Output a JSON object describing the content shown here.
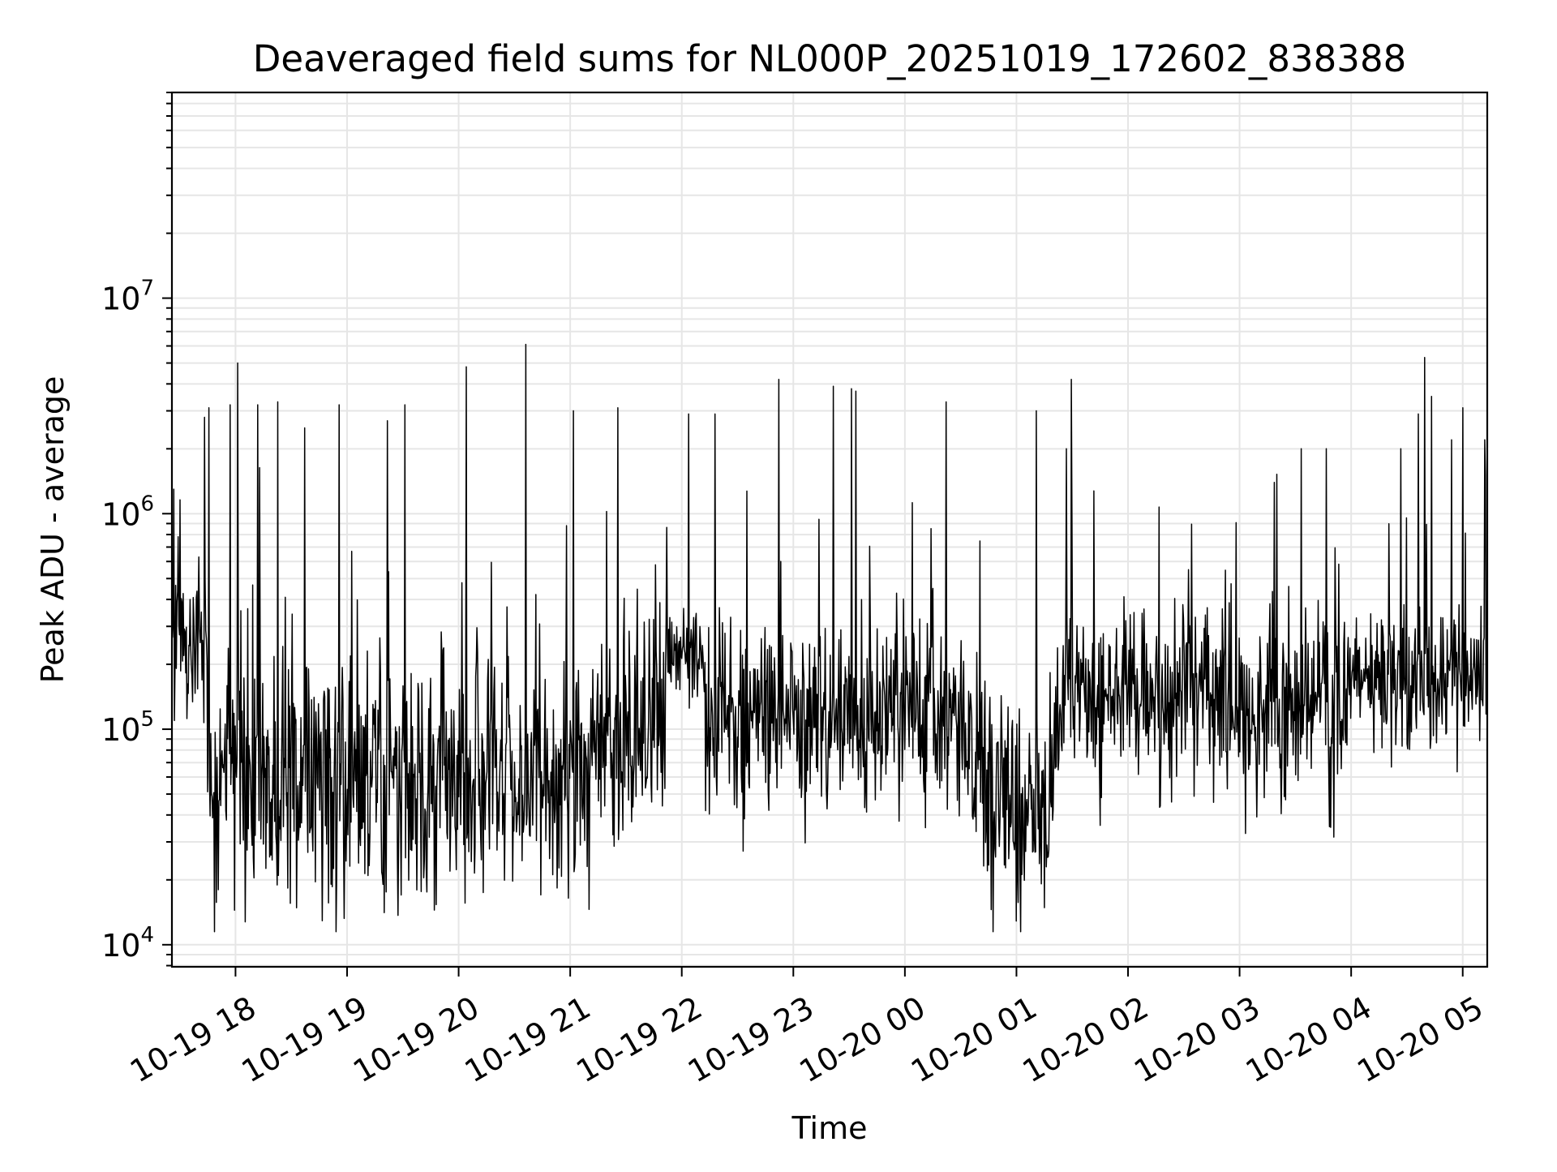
{
  "chart_data": {
    "type": "line",
    "title": "Deaveraged field sums for NL000P_20251019_172602_838388",
    "xlabel": "Time",
    "ylabel": "Peak ADU - average",
    "yscale": "log",
    "ylim": [
      7900,
      90000000
    ],
    "xlim_hours": [
      17.43,
      29.22
    ],
    "x_ticks": [
      {
        "hour": 18,
        "label": "10-19 18"
      },
      {
        "hour": 19,
        "label": "10-19 19"
      },
      {
        "hour": 20,
        "label": "10-19 20"
      },
      {
        "hour": 21,
        "label": "10-19 21"
      },
      {
        "hour": 22,
        "label": "10-19 22"
      },
      {
        "hour": 23,
        "label": "10-19 23"
      },
      {
        "hour": 24,
        "label": "10-20 00"
      },
      {
        "hour": 25,
        "label": "10-20 01"
      },
      {
        "hour": 26,
        "label": "10-20 02"
      },
      {
        "hour": 27,
        "label": "10-20 03"
      },
      {
        "hour": 28,
        "label": "10-20 04"
      },
      {
        "hour": 29,
        "label": "10-20 05"
      }
    ],
    "y_ticks": [
      {
        "value": 10000,
        "base": "10",
        "exp": "4"
      },
      {
        "value": 100000,
        "base": "10",
        "exp": "5"
      },
      {
        "value": 1000000,
        "base": "10",
        "exp": "6"
      },
      {
        "value": 10000000,
        "base": "10",
        "exp": "7"
      }
    ],
    "grid": true,
    "line_color": "#000000",
    "grid_color": "#e6e6e6",
    "series_note": "dense noisy time series, approx. 1 sample per 20 s",
    "baseline_segments": [
      {
        "start_hour": 17.43,
        "end_hour": 17.75,
        "median": 250000,
        "spread_dex": 0.35
      },
      {
        "start_hour": 17.75,
        "end_hour": 19.6,
        "median": 60000,
        "spread_dex": 0.55
      },
      {
        "start_hour": 19.6,
        "end_hour": 21.2,
        "median": 55000,
        "spread_dex": 0.5
      },
      {
        "start_hour": 21.2,
        "end_hour": 21.85,
        "median": 90000,
        "spread_dex": 0.45
      },
      {
        "start_hour": 21.85,
        "end_hour": 22.2,
        "median": 230000,
        "spread_dex": 0.2
      },
      {
        "start_hour": 22.2,
        "end_hour": 24.6,
        "median": 110000,
        "spread_dex": 0.4
      },
      {
        "start_hour": 24.6,
        "end_hour": 25.35,
        "median": 50000,
        "spread_dex": 0.5
      },
      {
        "start_hour": 25.35,
        "end_hour": 27.0,
        "median": 150000,
        "spread_dex": 0.4
      },
      {
        "start_hour": 27.0,
        "end_hour": 28.0,
        "median": 120000,
        "spread_dex": 0.4
      },
      {
        "start_hour": 28.0,
        "end_hour": 29.22,
        "median": 170000,
        "spread_dex": 0.3
      }
    ],
    "spikes": [
      {
        "hour": 17.72,
        "value": 2800000
      },
      {
        "hour": 17.76,
        "value": 3100000
      },
      {
        "hour": 17.95,
        "value": 3200000
      },
      {
        "hour": 18.02,
        "value": 5000000
      },
      {
        "hour": 18.2,
        "value": 3200000
      },
      {
        "hour": 18.38,
        "value": 3300000
      },
      {
        "hour": 18.62,
        "value": 2500000
      },
      {
        "hour": 18.93,
        "value": 3200000
      },
      {
        "hour": 19.36,
        "value": 2700000
      },
      {
        "hour": 19.52,
        "value": 3200000
      },
      {
        "hour": 20.07,
        "value": 4800000
      },
      {
        "hour": 20.6,
        "value": 6100000
      },
      {
        "hour": 21.03,
        "value": 3000000
      },
      {
        "hour": 21.43,
        "value": 3100000
      },
      {
        "hour": 22.06,
        "value": 2900000
      },
      {
        "hour": 22.3,
        "value": 2900000
      },
      {
        "hour": 22.87,
        "value": 4200000
      },
      {
        "hour": 23.36,
        "value": 3900000
      },
      {
        "hour": 23.52,
        "value": 3800000
      },
      {
        "hour": 23.56,
        "value": 3700000
      },
      {
        "hour": 24.37,
        "value": 3300000
      },
      {
        "hour": 25.18,
        "value": 3000000
      },
      {
        "hour": 25.49,
        "value": 4200000
      },
      {
        "hour": 28.6,
        "value": 2900000
      },
      {
        "hour": 28.66,
        "value": 5300000
      },
      {
        "hour": 28.72,
        "value": 3500000
      },
      {
        "hour": 28.9,
        "value": 2200000
      },
      {
        "hour": 29.0,
        "value": 3100000
      },
      {
        "hour": 29.2,
        "value": 2200000
      }
    ]
  }
}
